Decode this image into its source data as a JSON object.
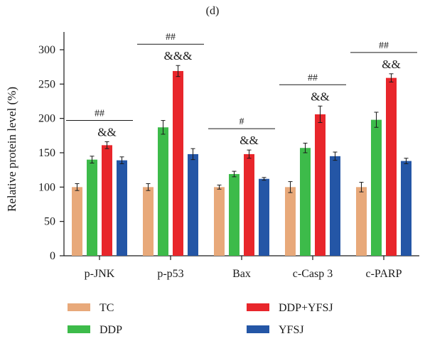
{
  "chart_data": {
    "type": "bar",
    "panel_label": "(d)",
    "ylabel": "Relative protein level (%)",
    "xlabel": "",
    "ylim": [
      0,
      300
    ],
    "yticks": [
      0,
      50,
      100,
      150,
      200,
      250,
      300
    ],
    "categories": [
      "p-JNK",
      "p-p53",
      "Bax",
      "c-Casp 3",
      "c-PARP"
    ],
    "series": [
      {
        "name": "TC",
        "color": "#e8a97a",
        "values": [
          100,
          100,
          100,
          100,
          100
        ],
        "errors": [
          5,
          5,
          3,
          8,
          7
        ]
      },
      {
        "name": "DDP",
        "color": "#3dbb4a",
        "values": [
          140,
          187,
          119,
          157,
          198
        ],
        "errors": [
          5,
          10,
          4,
          7,
          11
        ]
      },
      {
        "name": "DDP+YFSJ",
        "color": "#e8262b",
        "values": [
          161,
          269,
          148,
          206,
          259
        ],
        "errors": [
          5,
          8,
          6,
          12,
          6
        ]
      },
      {
        "name": "YFSJ",
        "color": "#2456a6",
        "values": [
          139,
          148,
          112,
          145,
          138
        ],
        "errors": [
          5,
          8,
          2,
          6,
          4
        ]
      }
    ],
    "annotations": [
      {
        "category": "p-JNK",
        "hash": "##",
        "amp": "&&"
      },
      {
        "category": "p-p53",
        "hash": "##",
        "amp": "&&&"
      },
      {
        "category": "Bax",
        "hash": "#",
        "amp": "&&"
      },
      {
        "category": "c-Casp 3",
        "hash": "##",
        "amp": "&&"
      },
      {
        "category": "c-PARP",
        "hash": "##",
        "amp": "&&"
      }
    ],
    "legend_placement": "bottom",
    "grid": false
  }
}
